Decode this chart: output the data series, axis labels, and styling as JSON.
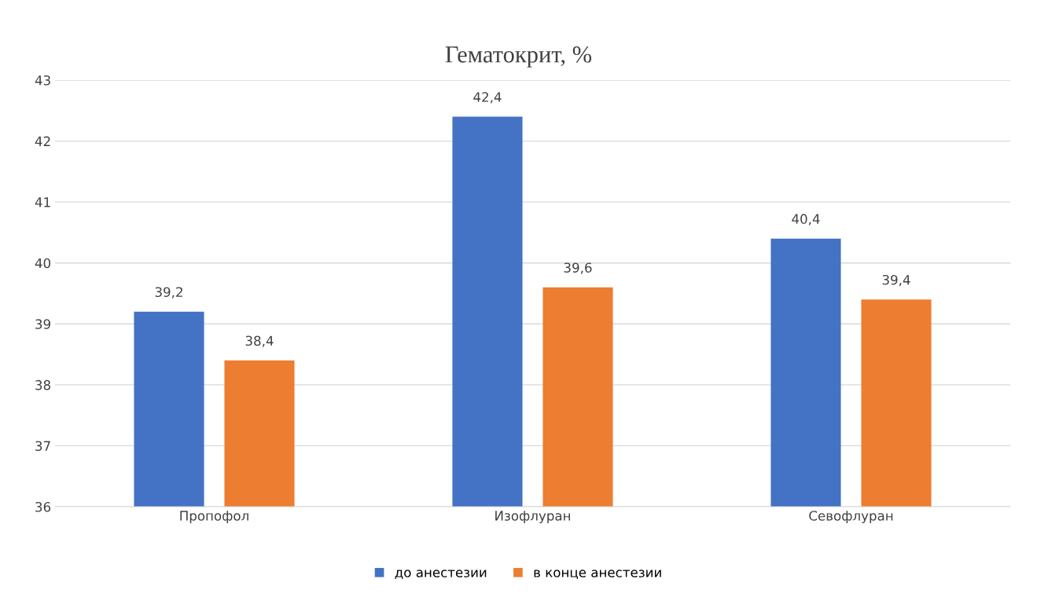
{
  "chart_data": {
    "type": "bar",
    "title": "Гематокрит, %",
    "categories": [
      "Пропофол",
      "Изофлуран",
      "Севофлуран"
    ],
    "series": [
      {
        "name": "до анестезии",
        "color": "#4472c4",
        "values": [
          39.2,
          42.4,
          40.4
        ],
        "value_labels": [
          "39,2",
          "42,4",
          "40,4"
        ]
      },
      {
        "name": "в конце анестезии",
        "color": "#ed7d31",
        "values": [
          38.4,
          39.6,
          39.4
        ],
        "value_labels": [
          "38,4",
          "39,6",
          "39,4"
        ]
      }
    ],
    "ylim": [
      36,
      43
    ],
    "yticks": [
      36,
      37,
      38,
      39,
      40,
      41,
      42,
      43
    ],
    "grid": "y",
    "legend": "bottom"
  }
}
